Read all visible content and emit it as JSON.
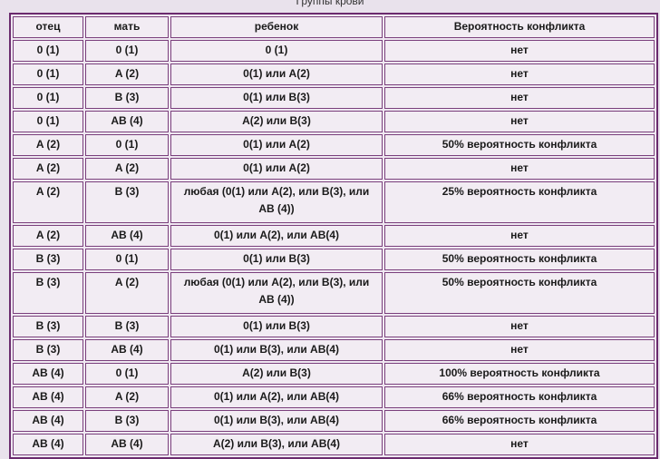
{
  "caption": "Группы крови",
  "headers": [
    "отец",
    "мать",
    "ребенок",
    "Вероятность конфликта"
  ],
  "rows": [
    [
      "0 (1)",
      "0 (1)",
      "0 (1)",
      "нет"
    ],
    [
      "0 (1)",
      "A (2)",
      "0(1) или A(2)",
      "нет"
    ],
    [
      "0 (1)",
      "B (3)",
      "0(1) или B(3)",
      "нет"
    ],
    [
      "0 (1)",
      "AB (4)",
      "A(2) или B(3)",
      "нет"
    ],
    [
      "A (2)",
      "0 (1)",
      "0(1) или A(2)",
      "50% вероятность конфликта"
    ],
    [
      "A (2)",
      "A (2)",
      "0(1) или A(2)",
      "нет"
    ],
    [
      "A (2)",
      "B (3)",
      "любая (0(1) или A(2), или B(3), или AB (4))",
      "25% вероятность конфликта"
    ],
    [
      "A (2)",
      "AB (4)",
      "0(1) или A(2), или AB(4)",
      "нет"
    ],
    [
      "B (3)",
      "0 (1)",
      "0(1) или B(3)",
      "50% вероятность конфликта"
    ],
    [
      "B (3)",
      "A (2)",
      "любая (0(1) или A(2), или B(3), или AB (4))",
      "50% вероятность конфликта"
    ],
    [
      "B (3)",
      "B (3)",
      "0(1) или B(3)",
      "нет"
    ],
    [
      "B (3)",
      "AB (4)",
      "0(1) или B(3), или AB(4)",
      "нет"
    ],
    [
      "AB (4)",
      "0 (1)",
      "A(2) или B(3)",
      "100% вероятность конфликта"
    ],
    [
      "AB (4)",
      "A (2)",
      "0(1) или A(2), или AB(4)",
      "66% вероятность конфликта"
    ],
    [
      "AB (4)",
      "B (3)",
      "0(1) или B(3), или AB(4)",
      "66% вероятность конфликта"
    ],
    [
      "AB (4)",
      "AB (4)",
      "A(2) или B(3), или AB(4)",
      "нет"
    ]
  ]
}
